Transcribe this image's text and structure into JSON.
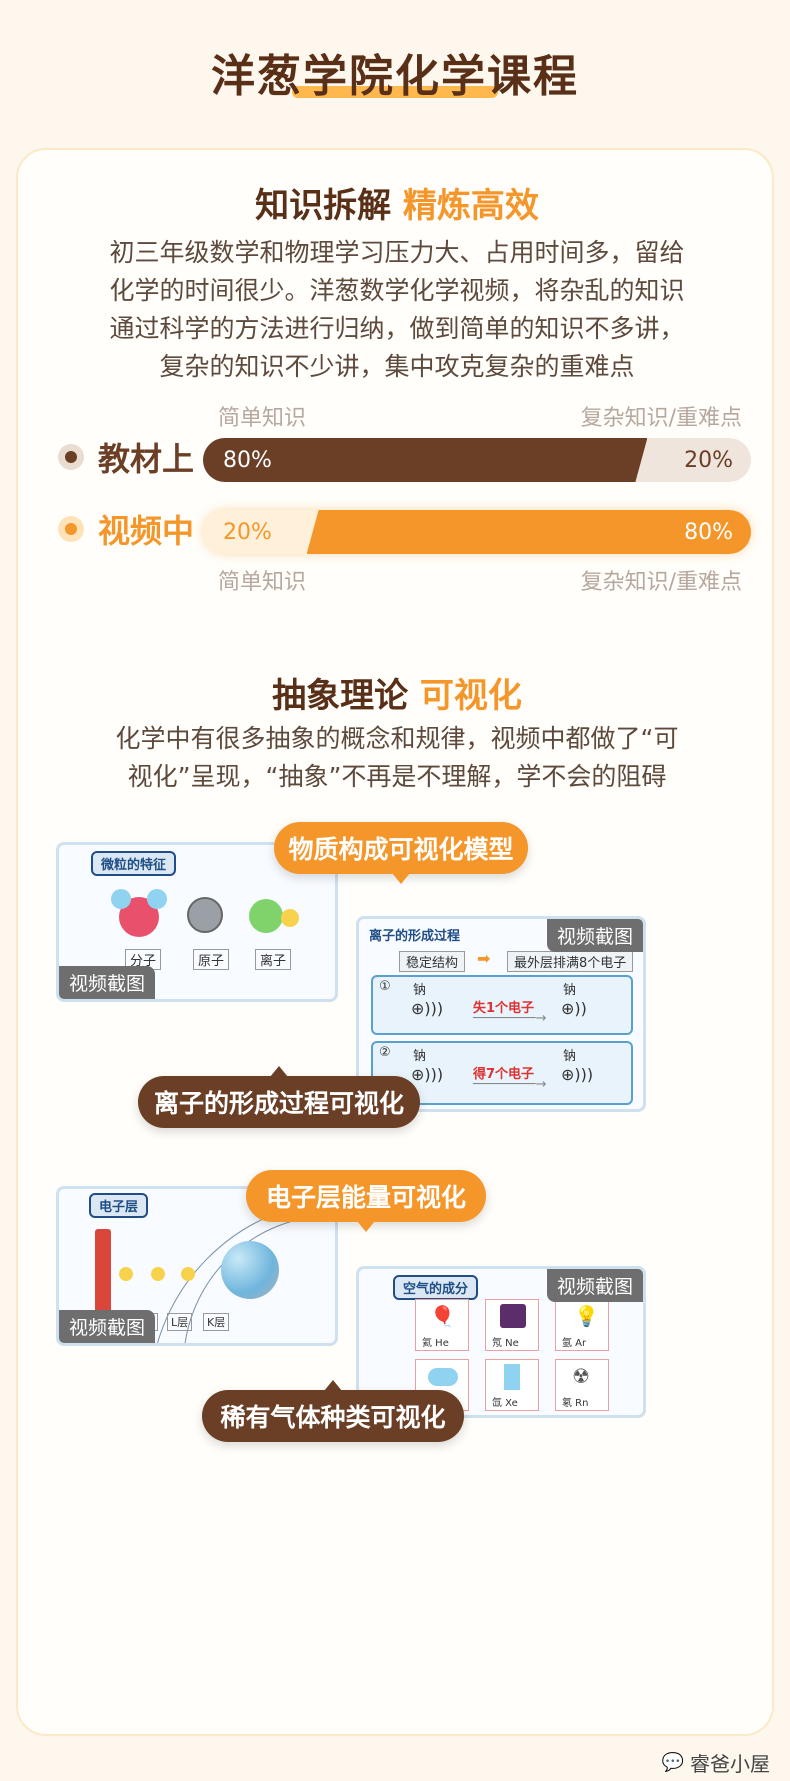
{
  "page_title": "洋葱学院化学课程",
  "section1": {
    "title_main": "知识拆解",
    "title_hl": "精炼高效",
    "para_lines": [
      "初三年级数学和物理学习压力大、占用时间多，留给",
      "化学的时间很少。洋葱数学化学视频，将杂乱的知识",
      "通过科学的方法进行归纳，做到简单的知识不多讲，",
      "复杂的知识不少讲，集中攻克复杂的重难点"
    ],
    "label_simple": "简单知识",
    "label_complex": "复杂知识/重难点",
    "rows": [
      {
        "label": "教材上",
        "simple_pct": 80,
        "simple_text": "80%",
        "complex_text": "20%"
      },
      {
        "label": "视频中",
        "simple_pct": 20,
        "simple_text": "20%",
        "complex_text": "80%"
      }
    ],
    "colors": {
      "brown": "#6b3e26",
      "orange": "#f5962a"
    }
  },
  "section2": {
    "title_main": "抽象理论",
    "title_hl": "可视化",
    "para_lines": [
      "化学中有很多抽象的概念和规律，视频中都做了“可",
      "视化”呈现，“抽象”不再是不理解，学不会的阻碍"
    ],
    "tag": "视频截图",
    "shot1": {
      "header": "微粒的特征",
      "labels": [
        "分子",
        "原子",
        "离子"
      ],
      "pill": "物质构成可视化模型"
    },
    "shot2": {
      "header": "离子的形成过程",
      "box_left": "稳定结构",
      "box_right": "最外层排满8个电子",
      "row1": {
        "num": "①",
        "el": "钠",
        "arrow": "失1个电子",
        "el2": "钠"
      },
      "row2": {
        "num": "②",
        "el": "钠",
        "arrow": "得7个电子",
        "el2": "钠"
      },
      "pill": "离子的形成过程可视化"
    },
    "shot3": {
      "header": "电子层",
      "labels": [
        "M层",
        "L层",
        "K层"
      ],
      "pill": "电子层能量可视化"
    },
    "shot4": {
      "header": "空气的成分",
      "gases": [
        "氦 He",
        "氖 Ne",
        "氩 Ar",
        "",
        "氙 Xe",
        "氡 Rn"
      ],
      "pill": "稀有气体种类可视化"
    }
  },
  "watermark": "睿爸小屋"
}
